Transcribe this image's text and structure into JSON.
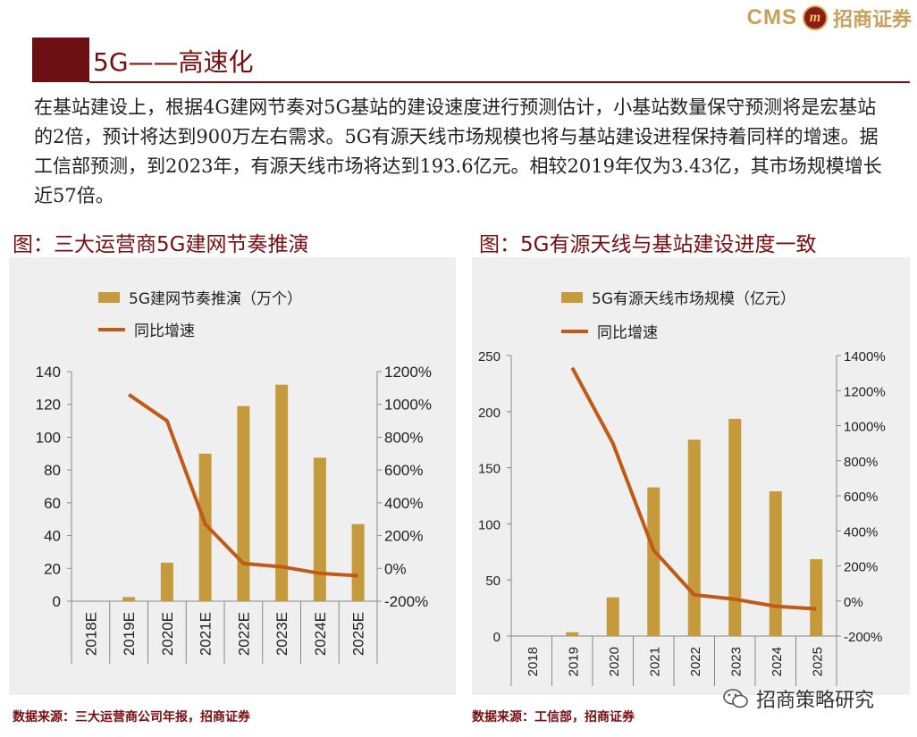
{
  "header": {
    "logo_text": "CMS",
    "logo_emblem": "m",
    "company_name": "招商证券",
    "title": "5G——高速化"
  },
  "paragraph": "在基站建设上，根据4G建网节奏对5G基站的建设速度进行预测估计，小基站数量保守预测将是宏基站的2倍，预计将达到900万左右需求。5G有源天线市场规模也将与基站建设进程保持着同样的增速。据工信部预测，到2023年，有源天线市场将达到193.6亿元。相较2019年仅为3.43亿，其市场规模增长近57倍。",
  "colors": {
    "accent": "#7a0c10",
    "bar": "#c49a3c",
    "line": "#c05a15",
    "panel": "#efefef"
  },
  "chart_data": [
    {
      "type": "bar",
      "title": "图：三大运营商5G建网节奏推演",
      "categories": [
        "2018E",
        "2019E",
        "2020E",
        "2021E",
        "2022E",
        "2023E",
        "2024E",
        "2025E"
      ],
      "series": [
        {
          "name": "5G建网节奏推演（万个）",
          "type": "bar",
          "axis": "left",
          "values": [
            0,
            2.5,
            23.5,
            90,
            119,
            132,
            87.5,
            47
          ]
        },
        {
          "name": "同比增速",
          "type": "line",
          "axis": "right",
          "values": [
            null,
            1060,
            900,
            270,
            30,
            10,
            -30,
            -45
          ]
        }
      ],
      "left_axis": {
        "min": 0,
        "max": 140,
        "ticks": [
          0,
          20,
          40,
          60,
          80,
          100,
          120,
          140
        ],
        "labels": [
          "0",
          "20",
          "40",
          "60",
          "80",
          "100",
          "120",
          "140"
        ]
      },
      "right_axis": {
        "min": -200,
        "max": 1200,
        "ticks": [
          -200,
          0,
          200,
          400,
          600,
          800,
          1000,
          1200
        ],
        "labels": [
          "-200%",
          "0%",
          "200%",
          "400%",
          "600%",
          "800%",
          "1000%",
          "1200%"
        ]
      },
      "source": "数据来源：三大运营商公司年报，招商证券"
    },
    {
      "type": "bar",
      "title": "图：5G有源天线与基站建设进度一致",
      "categories": [
        "2018",
        "2019",
        "2020",
        "2021",
        "2022",
        "2023",
        "2024",
        "2025"
      ],
      "series": [
        {
          "name": "5G有源天线市场规模（亿元）",
          "type": "bar",
          "axis": "left",
          "values": [
            0,
            3.43,
            34.5,
            132.5,
            175,
            193.6,
            129,
            68.5
          ]
        },
        {
          "name": "同比增速",
          "type": "line",
          "axis": "right",
          "values": [
            null,
            1330,
            900,
            290,
            35,
            10,
            -30,
            -45
          ]
        }
      ],
      "left_axis": {
        "min": 0,
        "max": 250,
        "ticks": [
          0,
          50,
          100,
          150,
          200,
          250
        ],
        "labels": [
          "0",
          "50",
          "100",
          "150",
          "200",
          "250"
        ]
      },
      "right_axis": {
        "min": -200,
        "max": 1400,
        "ticks": [
          -200,
          0,
          200,
          400,
          600,
          800,
          1000,
          1200,
          1400
        ],
        "labels": [
          "-200%",
          "0%",
          "200%",
          "400%",
          "600%",
          "800%",
          "1000%",
          "1200%",
          "1400%"
        ]
      },
      "source": "数据来源：工信部，招商证券"
    }
  ],
  "watermark": "招商策略研究"
}
